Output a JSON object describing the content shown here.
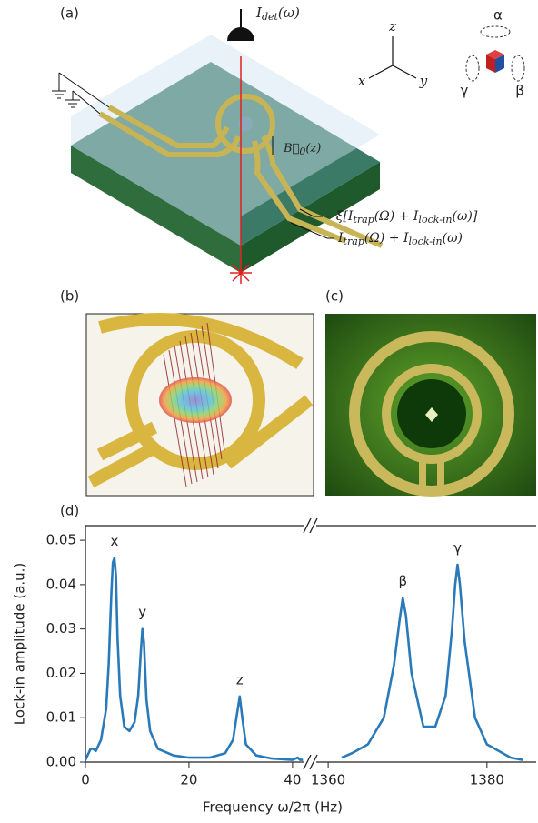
{
  "panels": {
    "a": {
      "label": "(a)",
      "detector": [
        "I",
        "det",
        "(ω)"
      ],
      "axes": {
        "z": "z",
        "x": "x",
        "y": "y"
      },
      "rotations": {
        "alpha": "α",
        "beta": "β",
        "gamma": "γ"
      },
      "field": [
        "B⃗",
        "0",
        "(z)"
      ],
      "current_top": [
        "−ξ[I",
        "trap",
        "(Ω) + I",
        "lock-in",
        "(ω)]"
      ],
      "current_bottom": [
        "I",
        "trap",
        "(Ω) + I",
        "lock-in",
        "(ω)"
      ]
    },
    "b": {
      "label": "(b)"
    },
    "c": {
      "label": "(c)"
    },
    "d": {
      "label": "(d)"
    }
  },
  "chart_data": {
    "type": "line",
    "xlabel": "Frequency ω/2π (Hz)",
    "ylabel": "Lock-in amplitude (a.u.)",
    "xlim": [
      [
        0,
        42.3
      ],
      [
        1358.5,
        1386.2
      ]
    ],
    "xticks": [
      [
        0,
        20,
        40
      ],
      [
        1360,
        1380
      ]
    ],
    "ylim": [
      0,
      0.0533
    ],
    "yticks": [
      {
        "value": 0,
        "label": "0.00"
      },
      {
        "value": 0.01,
        "label": "0.01"
      },
      {
        "value": 0.02,
        "label": "0.02"
      },
      {
        "value": 0.03,
        "label": "0.03"
      },
      {
        "value": 0.04,
        "label": "0.04"
      },
      {
        "value": 0.05,
        "label": "0.05"
      }
    ],
    "series": [
      {
        "color": "#2a7ab9",
        "x": [
          0,
          1,
          1.5,
          2,
          3,
          4,
          4.5,
          5,
          5.3,
          5.6,
          5.9,
          6.2,
          6.7,
          7.5,
          8.5,
          9.5,
          10.2,
          10.7,
          11.0,
          11.3,
          11.8,
          12.5,
          14,
          17,
          20,
          24,
          27,
          28.5,
          29.3,
          29.8,
          30.3,
          31,
          33,
          36,
          40,
          41,
          41.5,
          42
        ],
        "values": [
          0.0005,
          0.003,
          0.003,
          0.0025,
          0.005,
          0.012,
          0.022,
          0.038,
          0.045,
          0.046,
          0.042,
          0.028,
          0.015,
          0.008,
          0.007,
          0.009,
          0.015,
          0.025,
          0.03,
          0.027,
          0.014,
          0.007,
          0.003,
          0.0015,
          0.001,
          0.001,
          0.002,
          0.005,
          0.011,
          0.0148,
          0.01,
          0.004,
          0.0015,
          0.0008,
          0.0005,
          0.001,
          0.0005,
          0.0005
        ]
      },
      {
        "color": "#2a7ab9",
        "x": [
          1361.7,
          1363,
          1365,
          1367,
          1368.3,
          1369,
          1369.4,
          1369.8,
          1370.5,
          1372,
          1373.5,
          1374.8,
          1375.6,
          1376.0,
          1376.3,
          1376.6,
          1377.2,
          1378.5,
          1380,
          1383,
          1384.5
        ],
        "values": [
          0.001,
          0.002,
          0.004,
          0.01,
          0.022,
          0.032,
          0.037,
          0.033,
          0.02,
          0.008,
          0.008,
          0.015,
          0.03,
          0.04,
          0.0445,
          0.04,
          0.027,
          0.01,
          0.004,
          0.001,
          0.0005
        ]
      }
    ],
    "annotations": [
      {
        "text": "x",
        "segment": 0,
        "x": 5.6,
        "y": 0.046
      },
      {
        "text": "y",
        "segment": 0,
        "x": 11.0,
        "y": 0.03
      },
      {
        "text": "z",
        "segment": 0,
        "x": 29.8,
        "y": 0.0148
      },
      {
        "text": "β",
        "segment": 1,
        "x": 1369.4,
        "y": 0.037
      },
      {
        "text": "γ",
        "segment": 1,
        "x": 1376.3,
        "y": 0.0445
      }
    ]
  }
}
